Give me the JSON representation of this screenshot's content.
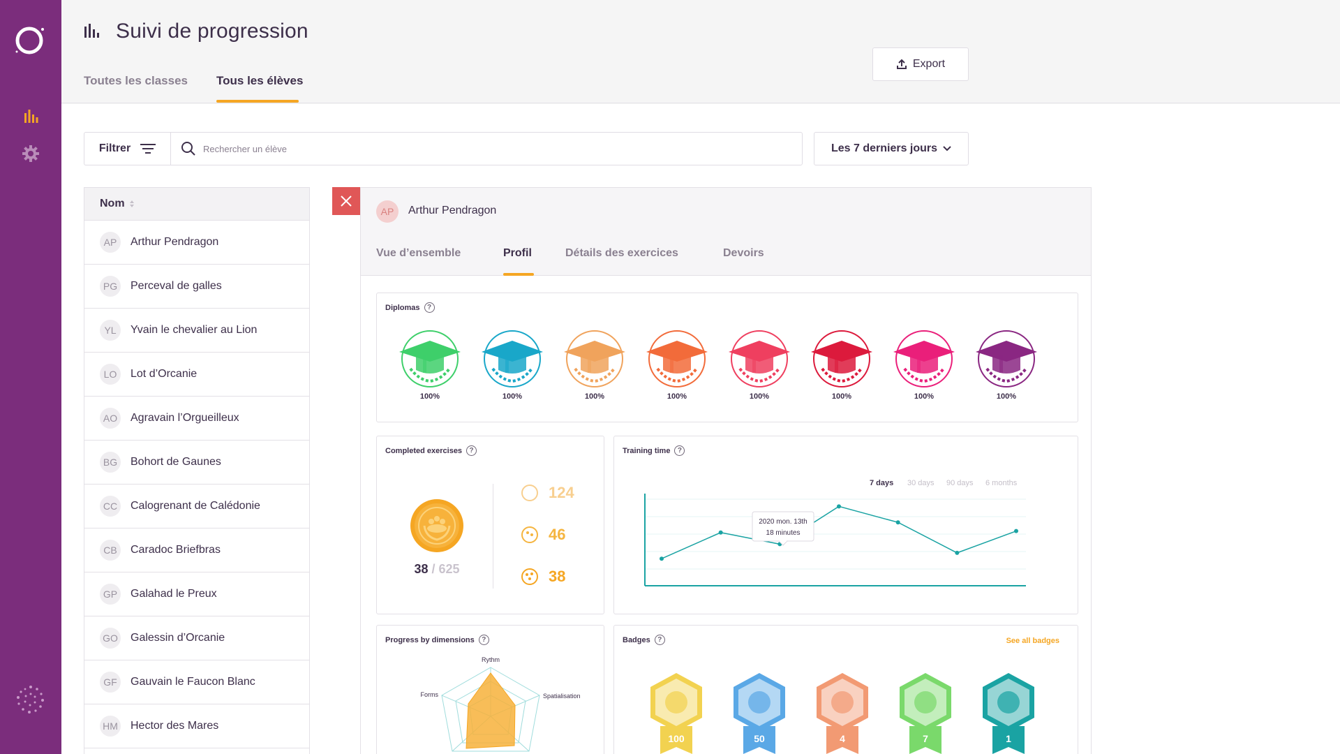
{
  "header": {
    "title": "Suivi de progression",
    "tabs": [
      {
        "label": "Toutes les classes"
      },
      {
        "label": "Tous les élèves"
      }
    ],
    "export_label": "Export"
  },
  "toolbar": {
    "filter_label": "Filtrer",
    "search_placeholder": "Rechercher un élève",
    "period_label": "Les 7 derniers jours"
  },
  "students": {
    "header": "Nom",
    "items": [
      {
        "initials": "AP",
        "name": "Arthur Pendragon"
      },
      {
        "initials": "PG",
        "name": "Perceval de galles"
      },
      {
        "initials": "YL",
        "name": "Yvain le chevalier au Lion"
      },
      {
        "initials": "LO",
        "name": "Lot d’Orcanie"
      },
      {
        "initials": "AO",
        "name": "Agravain l’Orgueilleux"
      },
      {
        "initials": "BG",
        "name": "Bohort de Gaunes"
      },
      {
        "initials": "CC",
        "name": "Calogrenant de Calédonie"
      },
      {
        "initials": "CB",
        "name": "Caradoc Briefbras"
      },
      {
        "initials": "GP",
        "name": "Galahad le Preux"
      },
      {
        "initials": "GO",
        "name": "Galessin d’Orcanie"
      },
      {
        "initials": "GF",
        "name": "Gauvain le Faucon Blanc"
      },
      {
        "initials": "HM",
        "name": "Hector des Mares"
      }
    ]
  },
  "detail": {
    "avatar": "AP",
    "name": "Arthur Pendragon",
    "tabs": [
      {
        "label": "Vue d’ensemble"
      },
      {
        "label": "Profil"
      },
      {
        "label": "Détails des exercices"
      },
      {
        "label": "Devoirs"
      }
    ],
    "active_tab": "Profil"
  },
  "diplomas": {
    "title": "Diplomas",
    "items": [
      {
        "color": "#3ecf6a",
        "pct": "100%"
      },
      {
        "color": "#19a7c9",
        "pct": "100%"
      },
      {
        "color": "#f0a35c",
        "pct": "100%"
      },
      {
        "color": "#f26b3a",
        "pct": "100%"
      },
      {
        "color": "#ef3f5f",
        "pct": "100%"
      },
      {
        "color": "#dc1a3c",
        "pct": "100%"
      },
      {
        "color": "#ea1f7a",
        "pct": "100%"
      },
      {
        "color": "#8a2782",
        "pct": "100%"
      }
    ]
  },
  "exercises": {
    "title": "Completed exercises",
    "done": "38",
    "total": "/ 625",
    "rows": [
      {
        "value": "124",
        "color": "#f8cf8f"
      },
      {
        "value": "46",
        "color": "#f5b540"
      },
      {
        "value": "38",
        "color": "#f5a623"
      }
    ]
  },
  "training": {
    "title": "Training time",
    "ranges": [
      "7 days",
      "30 days",
      "90 days",
      "6 months"
    ],
    "active_range": "7 days",
    "tooltip_date": "2020 mon. 13th",
    "tooltip_value": "18 minutes"
  },
  "chart_data": {
    "type": "line",
    "values": [
      1.0,
      2.8,
      2.0,
      4.6,
      3.5,
      1.4,
      2.9
    ],
    "note": "y-axis unlabeled"
  },
  "dimensions": {
    "title": "Progress by dimensions",
    "axes": [
      "Rythm",
      "Spatialisation",
      "Forms"
    ]
  },
  "badges": {
    "title": "Badges",
    "see_all": "See all badges",
    "items": [
      {
        "value": "100",
        "color": "#f2d250",
        "name": "sun-badge"
      },
      {
        "value": "50",
        "color": "#5aa8e6",
        "name": "molecule-badge"
      },
      {
        "value": "4",
        "color": "#f29a73",
        "name": "dots-badge"
      },
      {
        "value": "7",
        "color": "#7ad96b",
        "name": "grid-badge"
      },
      {
        "value": "1",
        "color": "#1aa3a3",
        "name": "teal-dots-badge"
      }
    ]
  },
  "colors": {
    "sidebar": "#7b2d7c",
    "accent": "#f5a623",
    "chart_line": "#1aa3a3",
    "close": "#e05757"
  }
}
